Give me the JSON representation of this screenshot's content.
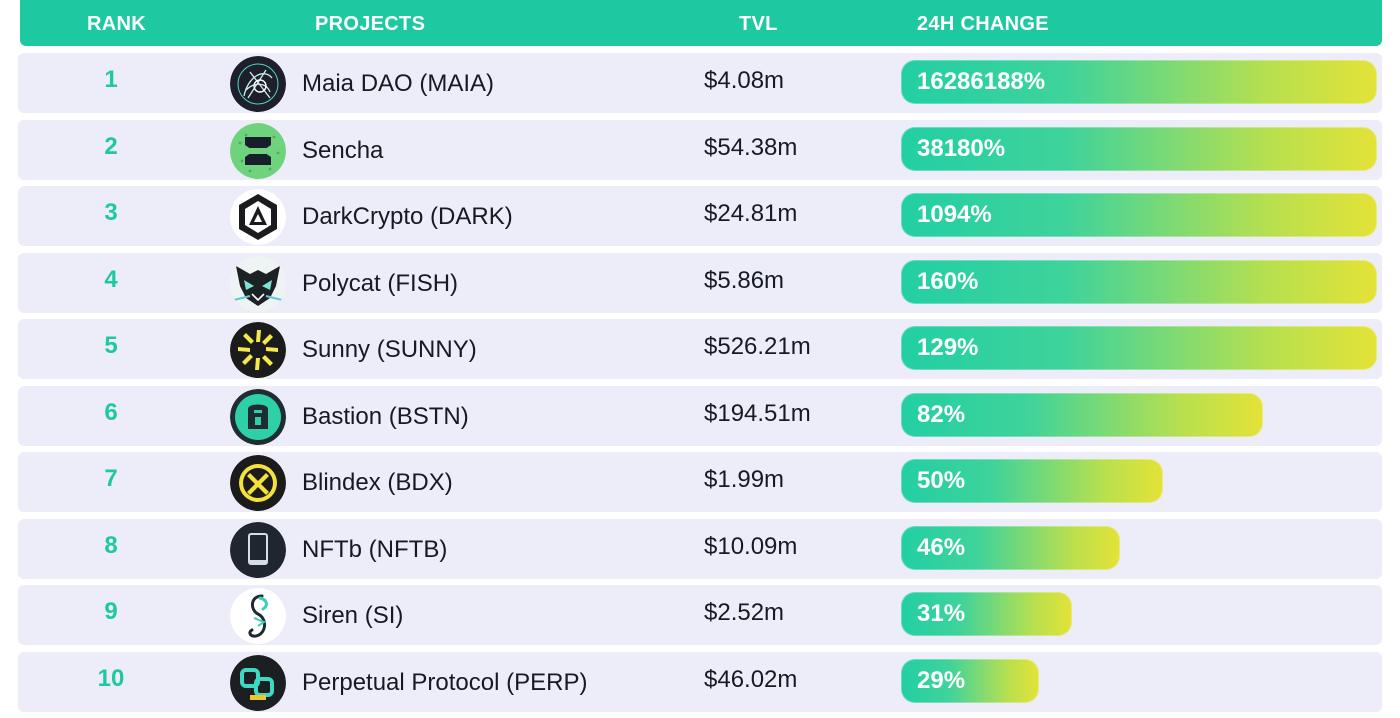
{
  "chart_data": {
    "type": "bar",
    "columns": [
      "RANK",
      "PROJECTS",
      "TVL",
      "24H CHANGE"
    ],
    "rows": [
      {
        "rank": "1",
        "project": "Maia DAO (MAIA)",
        "tvl": "$4.08m",
        "change_label": "16286188%",
        "change": 16286188,
        "bar_fraction": 1.0,
        "icon": "maia-logo-icon"
      },
      {
        "rank": "2",
        "project": "Sencha",
        "tvl": "$54.38m",
        "change_label": "38180%",
        "change": 38180,
        "bar_fraction": 1.0,
        "icon": "sencha-logo-icon"
      },
      {
        "rank": "3",
        "project": "DarkCrypto (DARK)",
        "tvl": "$24.81m",
        "change_label": "1094%",
        "change": 1094,
        "bar_fraction": 1.0,
        "icon": "darkcrypto-logo-icon"
      },
      {
        "rank": "4",
        "project": "Polycat (FISH)",
        "tvl": "$5.86m",
        "change_label": "160%",
        "change": 160,
        "bar_fraction": 1.0,
        "icon": "polycat-logo-icon"
      },
      {
        "rank": "5",
        "project": "Sunny (SUNNY)",
        "tvl": "$526.21m",
        "change_label": "129%",
        "change": 129,
        "bar_fraction": 1.0,
        "icon": "sunny-logo-icon"
      },
      {
        "rank": "6",
        "project": "Bastion (BSTN)",
        "tvl": "$194.51m",
        "change_label": "82%",
        "change": 82,
        "bar_fraction": 0.76,
        "icon": "bastion-logo-icon"
      },
      {
        "rank": "7",
        "project": "Blindex (BDX)",
        "tvl": "$1.99m",
        "change_label": "50%",
        "change": 50,
        "bar_fraction": 0.55,
        "icon": "blindex-logo-icon"
      },
      {
        "rank": "8",
        "project": "NFTb (NFTB)",
        "tvl": "$10.09m",
        "change_label": "46%",
        "change": 46,
        "bar_fraction": 0.46,
        "icon": "nftb-logo-icon"
      },
      {
        "rank": "9",
        "project": "Siren (SI)",
        "tvl": "$2.52m",
        "change_label": "31%",
        "change": 31,
        "bar_fraction": 0.36,
        "icon": "siren-logo-icon"
      },
      {
        "rank": "10",
        "project": "Perpetual Protocol (PERP)",
        "tvl": "$46.02m",
        "change_label": "29%",
        "change": 29,
        "bar_fraction": 0.29,
        "icon": "perp-logo-icon"
      }
    ]
  },
  "colors": {
    "accent": "#1ec9a1",
    "row_background": "#ededf9",
    "bar_gradient_start": "#22cfa3",
    "bar_gradient_end": "#e4e237",
    "text": "#161a24"
  }
}
